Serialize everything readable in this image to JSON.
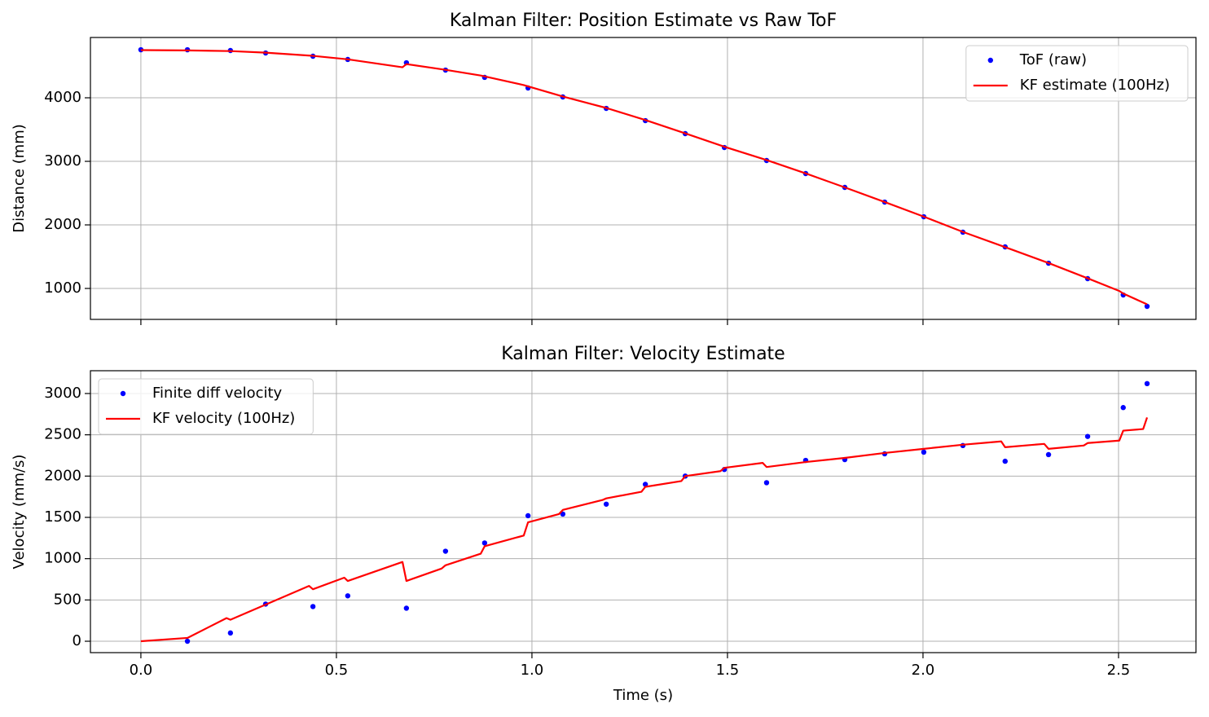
{
  "chart_data": [
    {
      "type": "line",
      "title": "Kalman Filter: Position Estimate vs Raw ToF",
      "ylabel": "Distance (mm)",
      "xlim": [
        -0.129,
        2.698
      ],
      "ylim": [
        513,
        4949
      ],
      "xticks": [
        0,
        0.5,
        1,
        1.5,
        2,
        2.5
      ],
      "x_tick_labels": false,
      "yticks": [
        1000,
        2000,
        3000,
        4000
      ],
      "grid": true,
      "legend": "upper right",
      "series": [
        {
          "name": "ToF (raw)",
          "color": "#0000ff",
          "style": "points",
          "x": [
            0.0,
            0.119,
            0.229,
            0.319,
            0.44,
            0.529,
            0.679,
            0.779,
            0.879,
            0.99,
            1.079,
            1.19,
            1.29,
            1.392,
            1.492,
            1.6,
            1.7,
            1.8,
            1.902,
            2.002,
            2.102,
            2.21,
            2.321,
            2.421,
            2.512,
            2.573
          ],
          "values": [
            4756,
            4756,
            4744,
            4705,
            4654,
            4603,
            4551,
            4436,
            4321,
            4154,
            4013,
            3833,
            3641,
            3436,
            3218,
            3013,
            2808,
            2590,
            2359,
            2128,
            1885,
            1654,
            1397,
            1154,
            897,
            718
          ]
        },
        {
          "name": "KF estimate (100Hz)",
          "color": "#ff0000",
          "style": "line",
          "x": [
            0,
            0.119,
            0.229,
            0.319,
            0.44,
            0.529,
            0.669,
            0.679,
            0.779,
            0.869,
            0.979,
            1.079,
            1.19,
            1.29,
            1.392,
            1.492,
            1.6,
            1.7,
            1.8,
            1.902,
            2.002,
            2.102,
            2.21,
            2.321,
            2.421,
            2.502,
            2.512,
            2.573
          ],
          "values": [
            4750,
            4745,
            4735,
            4710,
            4660,
            4605,
            4480,
            4530,
            4440,
            4350,
            4200,
            4020,
            3840,
            3650,
            3440,
            3230,
            3020,
            2810,
            2590,
            2360,
            2130,
            1890,
            1650,
            1400,
            1160,
            960,
            920,
            750
          ]
        }
      ]
    },
    {
      "type": "line",
      "title": "Kalman Filter: Velocity Estimate",
      "ylabel": "Velocity (mm/s)",
      "xlabel": "Time (s)",
      "xlim": [
        -0.129,
        2.698
      ],
      "ylim": [
        -138,
        3276
      ],
      "xticks": [
        {
          "value": 0,
          "label": "0.0"
        },
        0.5,
        {
          "value": 1,
          "label": "1.0"
        },
        1.5,
        {
          "value": 2,
          "label": "2.0"
        },
        2.5
      ],
      "x_tick_labels": true,
      "yticks": [
        0,
        500,
        1000,
        1500,
        2000,
        2500,
        3000
      ],
      "grid": true,
      "legend": "upper left",
      "series": [
        {
          "name": "Finite diff velocity",
          "color": "#0000ff",
          "style": "points",
          "x": [
            0.119,
            0.229,
            0.319,
            0.44,
            0.529,
            0.679,
            0.779,
            0.879,
            0.99,
            1.079,
            1.19,
            1.29,
            1.392,
            1.492,
            1.6,
            1.7,
            1.8,
            1.902,
            2.002,
            2.102,
            2.21,
            2.321,
            2.421,
            2.512,
            2.573
          ],
          "values": [
            0,
            100,
            450,
            420,
            550,
            400,
            1090,
            1190,
            1520,
            1540,
            1660,
            1900,
            2000,
            2080,
            1920,
            2190,
            2200,
            2270,
            2290,
            2370,
            2180,
            2260,
            2480,
            2830,
            3120
          ]
        },
        {
          "name": "KF velocity (100Hz)",
          "color": "#ff0000",
          "style": "line",
          "x": [
            0,
            0.119,
            0.219,
            0.229,
            0.43,
            0.44,
            0.52,
            0.529,
            0.669,
            0.679,
            0.769,
            0.779,
            0.869,
            0.879,
            0.979,
            0.99,
            1.069,
            1.079,
            1.18,
            1.19,
            1.28,
            1.29,
            1.382,
            1.392,
            1.482,
            1.492,
            1.59,
            1.6,
            1.7,
            1.8,
            1.902,
            2.002,
            2.102,
            2.2,
            2.21,
            2.31,
            2.321,
            2.411,
            2.421,
            2.502,
            2.512,
            2.563,
            2.573
          ],
          "values": [
            0,
            40,
            280,
            260,
            670,
            630,
            770,
            730,
            960,
            730,
            880,
            920,
            1060,
            1150,
            1280,
            1440,
            1540,
            1590,
            1710,
            1730,
            1810,
            1870,
            1940,
            2000,
            2060,
            2100,
            2160,
            2110,
            2170,
            2220,
            2280,
            2330,
            2380,
            2420,
            2350,
            2390,
            2330,
            2370,
            2400,
            2430,
            2550,
            2570,
            2710
          ]
        }
      ]
    }
  ]
}
